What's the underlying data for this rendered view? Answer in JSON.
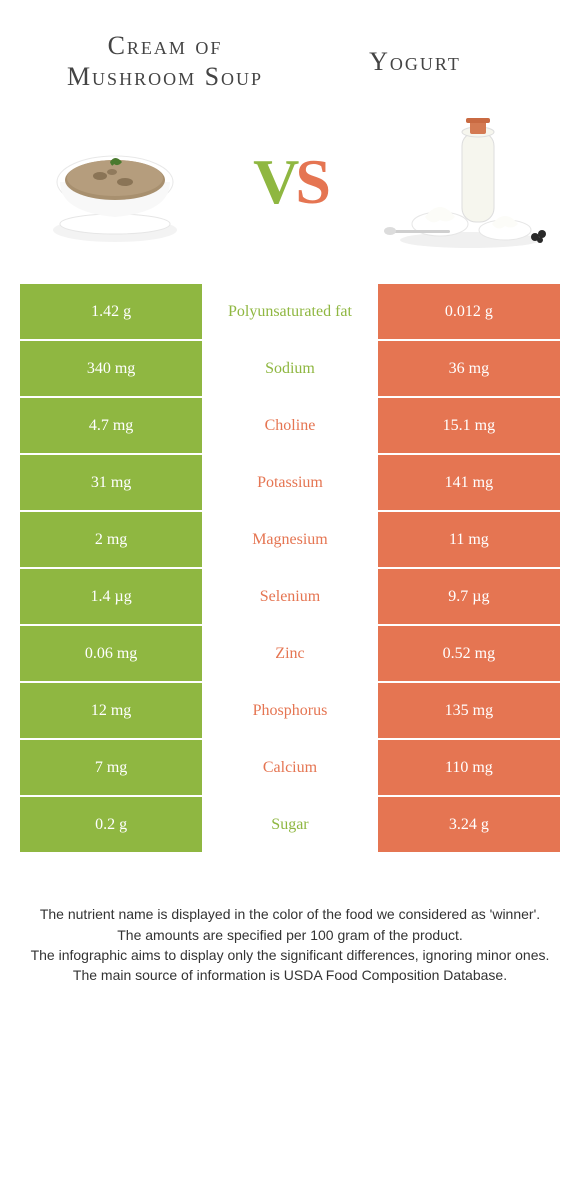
{
  "left_food_title": "Cream of Mushroom Soup",
  "right_food_title": "Yogurt",
  "vs_v": "V",
  "vs_s": "S",
  "colors": {
    "green": "#8fb741",
    "orange": "#e57552",
    "white": "#ffffff",
    "text": "#333333"
  },
  "rows": [
    {
      "left": "1.42 g",
      "nutrient": "Polyunsaturated fat",
      "winner": "green",
      "right": "0.012 g"
    },
    {
      "left": "340 mg",
      "nutrient": "Sodium",
      "winner": "green",
      "right": "36 mg"
    },
    {
      "left": "4.7 mg",
      "nutrient": "Choline",
      "winner": "orange",
      "right": "15.1 mg"
    },
    {
      "left": "31 mg",
      "nutrient": "Potassium",
      "winner": "orange",
      "right": "141 mg"
    },
    {
      "left": "2 mg",
      "nutrient": "Magnesium",
      "winner": "orange",
      "right": "11 mg"
    },
    {
      "left": "1.4 µg",
      "nutrient": "Selenium",
      "winner": "orange",
      "right": "9.7 µg"
    },
    {
      "left": "0.06 mg",
      "nutrient": "Zinc",
      "winner": "orange",
      "right": "0.52 mg"
    },
    {
      "left": "12 mg",
      "nutrient": "Phosphorus",
      "winner": "orange",
      "right": "135 mg"
    },
    {
      "left": "7 mg",
      "nutrient": "Calcium",
      "winner": "orange",
      "right": "110 mg"
    },
    {
      "left": "0.2 g",
      "nutrient": "Sugar",
      "winner": "green",
      "right": "3.24 g"
    }
  ],
  "footer_lines": [
    "The nutrient name is displayed in the color of the food we considered as 'winner'.",
    "The amounts are specified per 100 gram of the product.",
    "The infographic aims to display only the significant differences, ignoring minor ones.",
    "The main source of information is USDA Food Composition Database."
  ]
}
